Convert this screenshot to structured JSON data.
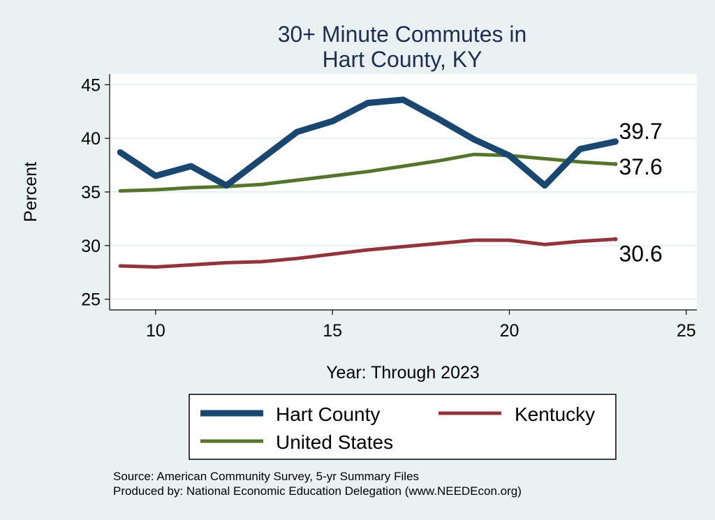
{
  "chart_data": {
    "type": "line",
    "title_lines": [
      "30+ Minute Commutes in",
      "Hart County, KY"
    ],
    "xlabel": "Year: Through 2023",
    "ylabel": "Percent",
    "xlim": [
      8.7,
      25.3
    ],
    "ylim": [
      24,
      46
    ],
    "xticks": [
      10,
      15,
      20,
      25
    ],
    "yticks": [
      25,
      30,
      35,
      40,
      45
    ],
    "grid": true,
    "series": [
      {
        "name": "Hart County",
        "color": "#1a476f",
        "width": 9,
        "x": [
          9,
          10,
          11,
          12,
          13,
          14,
          15,
          16,
          17,
          18,
          19,
          20,
          21,
          22,
          23
        ],
        "y": [
          38.7,
          36.5,
          37.4,
          35.6,
          38.1,
          40.6,
          41.6,
          43.3,
          43.6,
          41.8,
          39.9,
          38.4,
          35.6,
          39.0,
          39.7
        ],
        "end_label": "39.7"
      },
      {
        "name": "Kentucky",
        "color": "#90353b",
        "width": 5,
        "x": [
          9,
          10,
          11,
          12,
          13,
          14,
          15,
          16,
          17,
          18,
          19,
          20,
          21,
          22,
          23
        ],
        "y": [
          28.1,
          28.0,
          28.2,
          28.4,
          28.5,
          28.8,
          29.2,
          29.6,
          29.9,
          30.2,
          30.5,
          30.5,
          30.1,
          30.4,
          30.6
        ],
        "end_label": "30.6"
      },
      {
        "name": "United States",
        "color": "#55752f",
        "width": 5,
        "x": [
          9,
          10,
          11,
          12,
          13,
          14,
          15,
          16,
          17,
          18,
          19,
          20,
          21,
          22,
          23
        ],
        "y": [
          35.1,
          35.2,
          35.4,
          35.5,
          35.7,
          36.1,
          36.5,
          36.9,
          37.4,
          37.9,
          38.5,
          38.4,
          38.1,
          37.8,
          37.6
        ],
        "end_label": "37.6"
      }
    ],
    "legend": {
      "placement": "bottom",
      "items": [
        "Hart County",
        "Kentucky",
        "United States"
      ]
    }
  },
  "notes": {
    "source": "Source: American Community Survey, 5-yr Summary Files",
    "produced_by": "Produced by: National Economic Education Delegation (www.NEEDEcon.org)"
  }
}
